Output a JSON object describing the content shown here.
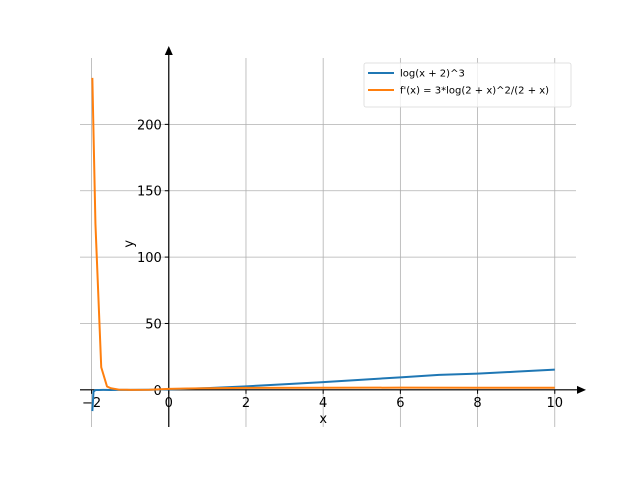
{
  "chart_data": {
    "type": "line",
    "title": "",
    "xlabel": "x",
    "ylabel": "y",
    "xlim": [
      -2.3,
      10.55
    ],
    "ylim": [
      -28,
      250
    ],
    "grid": true,
    "legend_position": "top-right",
    "x_ticks": [
      -2,
      0,
      2,
      4,
      6,
      8,
      10
    ],
    "x_tick_labels": [
      "−2",
      "0",
      "2",
      "4",
      "6",
      "8",
      "10"
    ],
    "y_ticks": [
      0,
      50,
      100,
      150,
      200
    ],
    "y_tick_labels": [
      "0",
      "50",
      "100",
      "150",
      "200"
    ],
    "series": [
      {
        "name": "log(x + 2)^3",
        "color": "#1f77b4",
        "x": [
          -1.98,
          -1.95,
          -1.9,
          -1.8,
          -1.7,
          -1.5,
          -1.3,
          -1.0,
          -0.5,
          0,
          0.5,
          1,
          2,
          3,
          4,
          5,
          6,
          7,
          8,
          9,
          10
        ],
        "y": [
          -16.0,
          -1.3,
          -0.17,
          -0.08,
          -0.07,
          -0.09,
          -0.01,
          0.0,
          0.07,
          0.33,
          0.77,
          1.32,
          2.64,
          4.16,
          5.8,
          7.6,
          9.4,
          11.3,
          12.2,
          13.7,
          15.2
        ]
      },
      {
        "name": "f'(x) = 3*log(2 + x)^2/(2 + x)",
        "color": "#ff7f0e",
        "x": [
          -1.98,
          -1.9,
          -1.75,
          -1.6,
          -1.5,
          -1.3,
          -1.0,
          -0.5,
          0,
          0.5,
          1,
          2,
          4,
          6,
          8,
          10
        ],
        "y": [
          235.0,
          125.0,
          17.0,
          2.5,
          1.2,
          0.2,
          0.0,
          0.07,
          0.72,
          1.0,
          1.2,
          1.44,
          1.6,
          1.62,
          1.59,
          1.54
        ]
      }
    ]
  }
}
